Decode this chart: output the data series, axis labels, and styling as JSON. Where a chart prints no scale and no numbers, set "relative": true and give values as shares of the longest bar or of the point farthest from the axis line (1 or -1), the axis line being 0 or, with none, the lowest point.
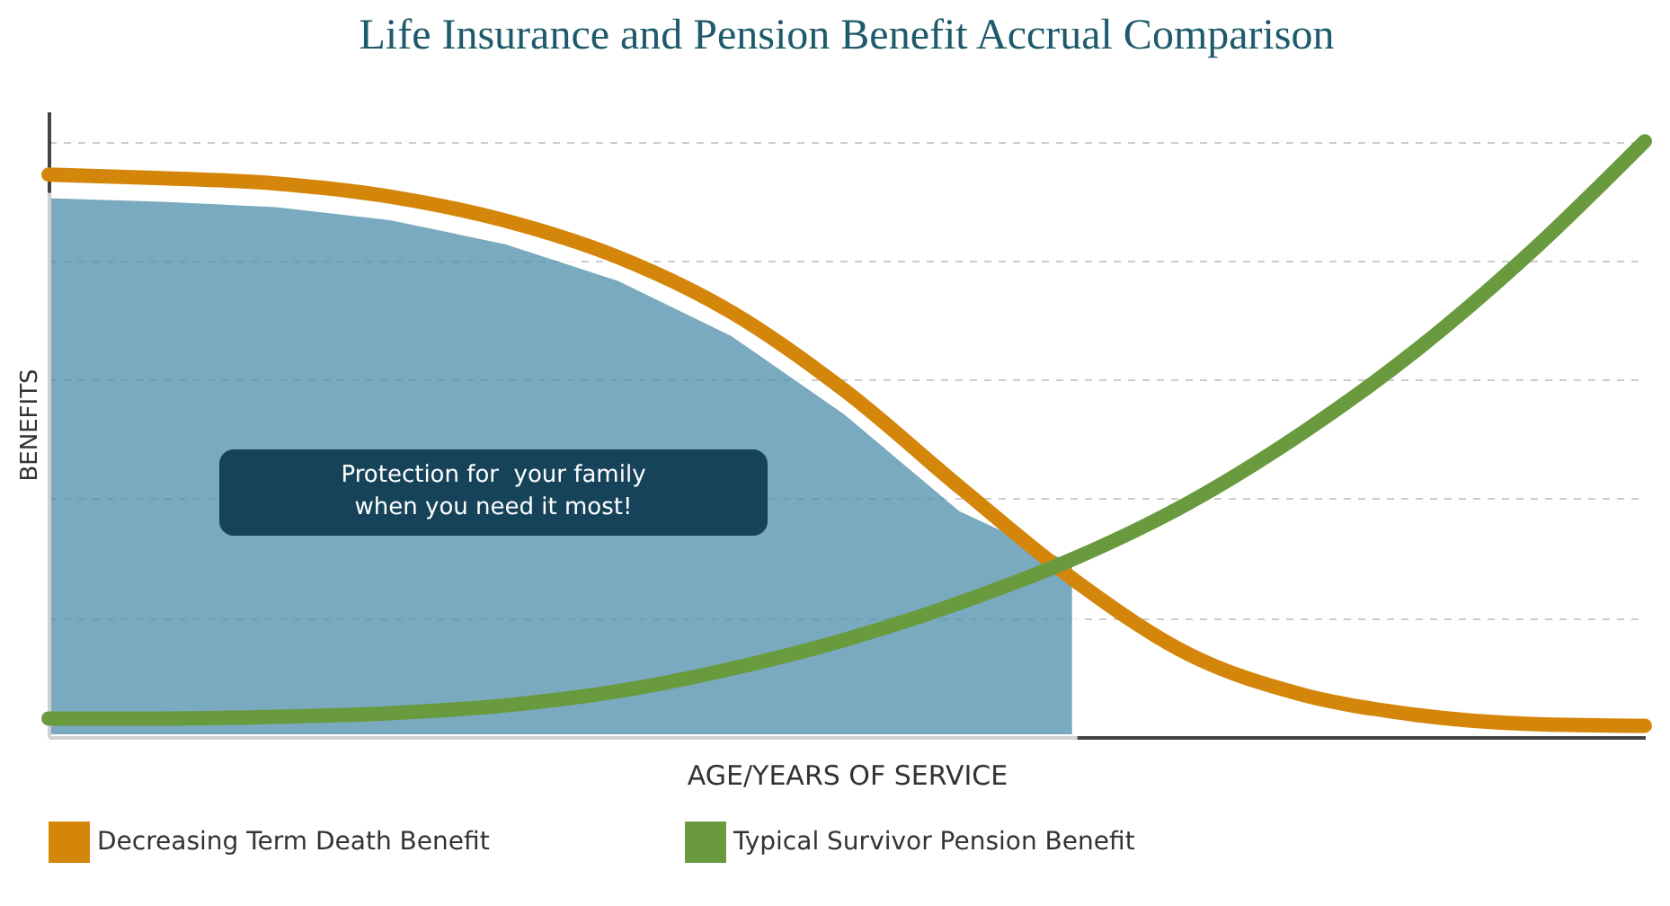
{
  "chart_data": {
    "type": "line",
    "title": "Life Insurance and Pension Benefit Accrual Comparison",
    "xlabel": "AGE/YEARS OF SERVICE",
    "ylabel": "BENEFITS",
    "relative": true,
    "grid": "y",
    "legend": "bottom",
    "annotations": [
      "Protection for  your family\nwhen you need it most!"
    ],
    "categories": [
      null,
      null,
      null,
      null,
      null,
      null,
      null,
      null,
      null,
      null,
      null,
      null,
      null,
      null,
      null
    ],
    "series": [
      {
        "type": "area",
        "color": "#4d8eaa",
        "values": [
          0.909,
          0.903,
          0.894,
          0.872,
          0.832,
          0.77,
          0.677,
          0.544,
          0.383,
          0.294,
          null,
          null,
          null,
          null,
          null
        ]
      },
      {
        "name": "Decreasing Term Death Benefit",
        "color": "#d4860b",
        "values": [
          0.944,
          0.938,
          0.929,
          0.907,
          0.867,
          0.805,
          0.712,
          0.579,
          0.418,
          0.263,
          0.139,
          0.071,
          0.037,
          0.022,
          0.019
        ]
      },
      {
        "name": "Typical Survivor Pension Benefit",
        "color": "#6a9a3e",
        "values": [
          0.031,
          0.031,
          0.034,
          0.04,
          0.053,
          0.077,
          0.115,
          0.164,
          0.226,
          0.3,
          0.393,
          0.511,
          0.65,
          0.814,
          1
        ]
      }
    ]
  }
}
